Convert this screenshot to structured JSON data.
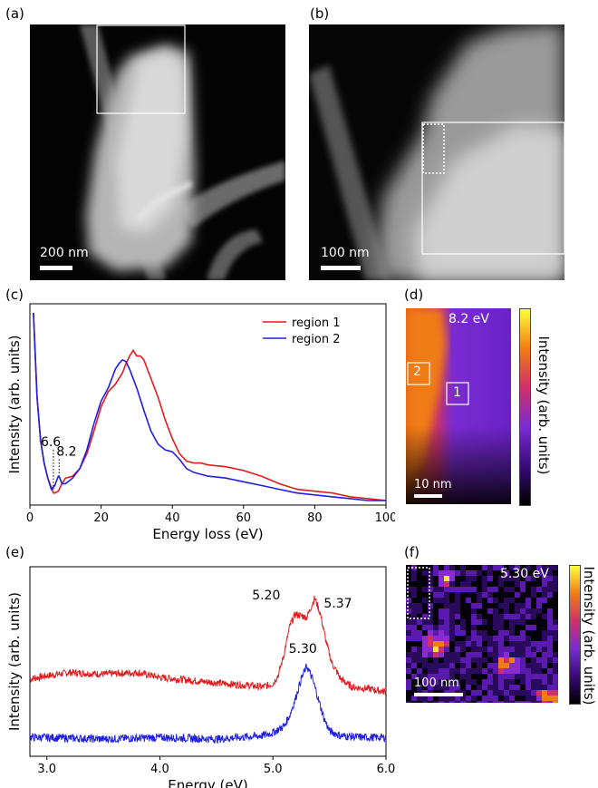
{
  "panels": {
    "a": {
      "label": "(a)",
      "scale_bar": "200 nm"
    },
    "b": {
      "label": "(b)",
      "scale_bar": "100 nm"
    },
    "c": {
      "label": "(c)"
    },
    "d": {
      "label": "(d)",
      "energy": "8.2 eV",
      "scale_bar": "10 nm",
      "region_1": "1",
      "region_2": "2",
      "colorbar_label": "Intensity (arb. units)"
    },
    "e": {
      "label": "(e)"
    },
    "f": {
      "label": "(f)",
      "energy": "5.30 eV",
      "scale_bar": "100 nm",
      "colorbar_label": "Intensity (arb. units)"
    }
  },
  "chart_data": [
    {
      "panel": "c",
      "type": "line",
      "xlabel": "Energy loss (eV)",
      "ylabel": "Intensity (arb. units)",
      "xlim": [
        0,
        100
      ],
      "xticks": [
        0,
        20,
        40,
        60,
        80,
        100
      ],
      "legend_position": "top-right",
      "annotations": [
        "6.6",
        "8.2"
      ],
      "series": [
        {
          "name": "region 1",
          "color": "#e41a1c",
          "x": [
            1,
            2,
            3,
            4,
            5,
            6,
            6.6,
            7,
            8,
            9,
            10,
            12,
            14,
            16,
            18,
            20,
            22,
            24,
            26,
            27,
            28,
            29,
            30,
            31,
            32,
            33,
            34,
            36,
            38,
            40,
            42,
            44,
            46,
            48,
            50,
            55,
            60,
            65,
            70,
            75,
            80,
            85,
            90,
            95,
            100
          ],
          "y": [
            1.0,
            0.55,
            0.32,
            0.2,
            0.12,
            0.07,
            0.04,
            0.04,
            0.05,
            0.09,
            0.12,
            0.13,
            0.17,
            0.25,
            0.37,
            0.5,
            0.58,
            0.62,
            0.68,
            0.73,
            0.77,
            0.8,
            0.77,
            0.77,
            0.75,
            0.7,
            0.65,
            0.55,
            0.43,
            0.33,
            0.25,
            0.21,
            0.2,
            0.2,
            0.19,
            0.18,
            0.16,
            0.13,
            0.09,
            0.06,
            0.05,
            0.04,
            0.02,
            0.01,
            0.0
          ]
        },
        {
          "name": "region 2",
          "color": "#1f1fe0",
          "x": [
            1,
            2,
            3,
            4,
            5,
            6,
            7,
            8,
            8.2,
            9,
            10,
            12,
            14,
            16,
            18,
            20,
            22,
            24,
            25,
            26,
            27,
            28,
            30,
            32,
            34,
            36,
            38,
            40,
            42,
            44,
            46,
            48,
            50,
            55,
            60,
            65,
            70,
            75,
            80,
            85,
            90,
            95,
            100
          ],
          "y": [
            1.0,
            0.55,
            0.32,
            0.2,
            0.12,
            0.06,
            0.08,
            0.13,
            0.13,
            0.09,
            0.09,
            0.12,
            0.17,
            0.27,
            0.41,
            0.53,
            0.6,
            0.7,
            0.73,
            0.75,
            0.74,
            0.7,
            0.6,
            0.48,
            0.37,
            0.3,
            0.27,
            0.26,
            0.22,
            0.17,
            0.15,
            0.14,
            0.13,
            0.12,
            0.1,
            0.08,
            0.06,
            0.04,
            0.03,
            0.02,
            0.01,
            0.0,
            0.0
          ]
        }
      ]
    },
    {
      "panel": "e",
      "type": "line",
      "xlabel": "Energy (eV)",
      "ylabel": "Intensity (arb. units)",
      "xlim": [
        2.85,
        6.0
      ],
      "xticks": [
        "3.0",
        "4.0",
        "5.0",
        "6.0"
      ],
      "peak_labels": [
        {
          "text": "5.20",
          "x": 5.2
        },
        {
          "text": "5.37",
          "x": 5.37
        },
        {
          "text": "5.30",
          "x": 5.3
        }
      ],
      "series": [
        {
          "color": "#e41a1c",
          "x": [
            2.85,
            3.0,
            3.2,
            3.5,
            3.8,
            4.0,
            4.3,
            4.6,
            4.8,
            4.9,
            5.0,
            5.05,
            5.1,
            5.15,
            5.2,
            5.25,
            5.3,
            5.37,
            5.42,
            5.47,
            5.52,
            5.6,
            5.7,
            5.85,
            6.0
          ],
          "y": [
            0.42,
            0.44,
            0.46,
            0.45,
            0.46,
            0.43,
            0.41,
            0.39,
            0.38,
            0.37,
            0.39,
            0.45,
            0.58,
            0.75,
            0.82,
            0.81,
            0.8,
            0.92,
            0.82,
            0.65,
            0.52,
            0.42,
            0.37,
            0.36,
            0.34
          ]
        },
        {
          "color": "#1f1fe0",
          "x": [
            2.85,
            3.0,
            3.5,
            4.0,
            4.5,
            4.9,
            5.0,
            5.1,
            5.15,
            5.2,
            5.25,
            5.3,
            5.35,
            5.4,
            5.45,
            5.5,
            5.6,
            5.8,
            6.0
          ],
          "y": [
            0.06,
            0.06,
            0.05,
            0.06,
            0.05,
            0.07,
            0.09,
            0.13,
            0.2,
            0.3,
            0.42,
            0.5,
            0.42,
            0.3,
            0.18,
            0.1,
            0.07,
            0.06,
            0.06
          ]
        }
      ]
    }
  ]
}
